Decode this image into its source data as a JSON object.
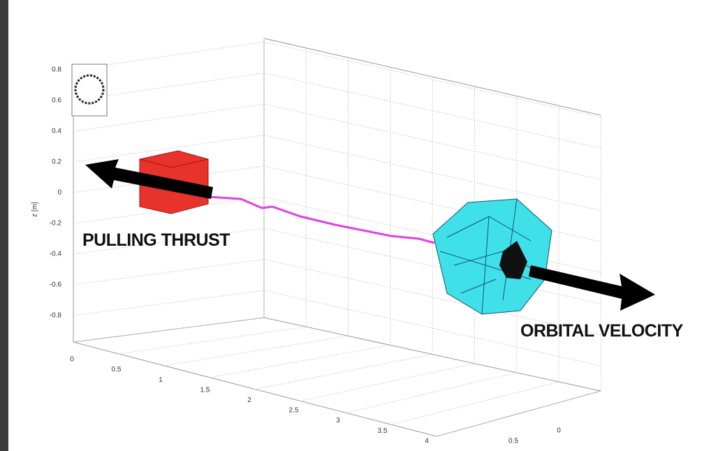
{
  "figure": {
    "z_label": "z [m]",
    "z_ticks": [
      0.8,
      0.6,
      0.4,
      0.2,
      0,
      -0.2,
      -0.4,
      -0.6,
      -0.8
    ],
    "x_ticks": [
      0,
      0.5,
      1,
      1.5,
      2,
      2.5,
      3,
      3.5,
      4
    ],
    "y_ticks": [
      0.5,
      0
    ],
    "annotations": [
      "PULLING THRUST",
      "ORBITAL VELOCITY"
    ]
  }
}
